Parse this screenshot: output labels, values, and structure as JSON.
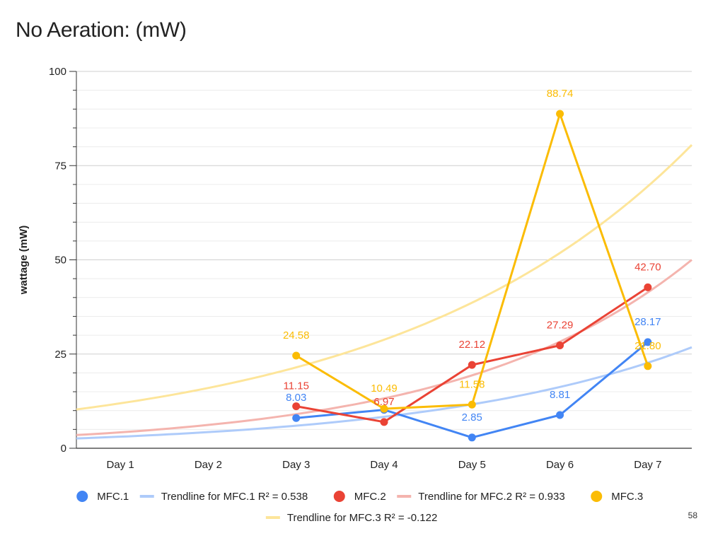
{
  "page": {
    "number": "58"
  },
  "chart_data": {
    "type": "line",
    "title": "No Aeration: (mW)",
    "xlabel": "",
    "ylabel": "wattage (mW)",
    "ylim": [
      0,
      100
    ],
    "yticks": [
      "0",
      "25",
      "50",
      "75",
      "100"
    ],
    "grid": true,
    "legend_position": "bottom",
    "categories": [
      "Day 1",
      "Day 2",
      "Day 3",
      "Day 4",
      "Day 5",
      "Day 6",
      "Day 7"
    ],
    "series": [
      {
        "name": "MFC.1",
        "color": "#4285f4",
        "values": [
          null,
          null,
          8.03,
          10.2,
          2.85,
          8.81,
          28.17
        ],
        "labels": [
          null,
          null,
          "8.03",
          null,
          "2.85",
          "8.81",
          "28.17"
        ]
      },
      {
        "name": "MFC.2",
        "color": "#ea4335",
        "values": [
          null,
          null,
          11.15,
          6.97,
          22.12,
          27.29,
          42.7
        ],
        "labels": [
          null,
          null,
          "11.15",
          "6.97",
          "22.12",
          "27.29",
          "42.70"
        ]
      },
      {
        "name": "MFC.3",
        "color": "#fbbc04",
        "values": [
          null,
          null,
          24.58,
          10.49,
          11.58,
          88.74,
          21.8
        ],
        "labels": [
          null,
          null,
          "24.58",
          "10.49",
          "11.58",
          "88.74",
          "21.80"
        ]
      }
    ],
    "trendlines": [
      {
        "name": "Trendline for MFC.1 R² = 0.538",
        "color": "#aecbfa",
        "type": "exponential",
        "start": 2.6,
        "end": 26.8
      },
      {
        "name": "Trendline for MFC.2 R² = 0.933",
        "color": "#f4b4ae",
        "type": "exponential",
        "start": 3.5,
        "end": 50.0
      },
      {
        "name": "Trendline for MFC.3 R² = -0.122",
        "color": "#fde59a",
        "type": "exponential",
        "start": 10.3,
        "end": 80.5
      }
    ]
  }
}
